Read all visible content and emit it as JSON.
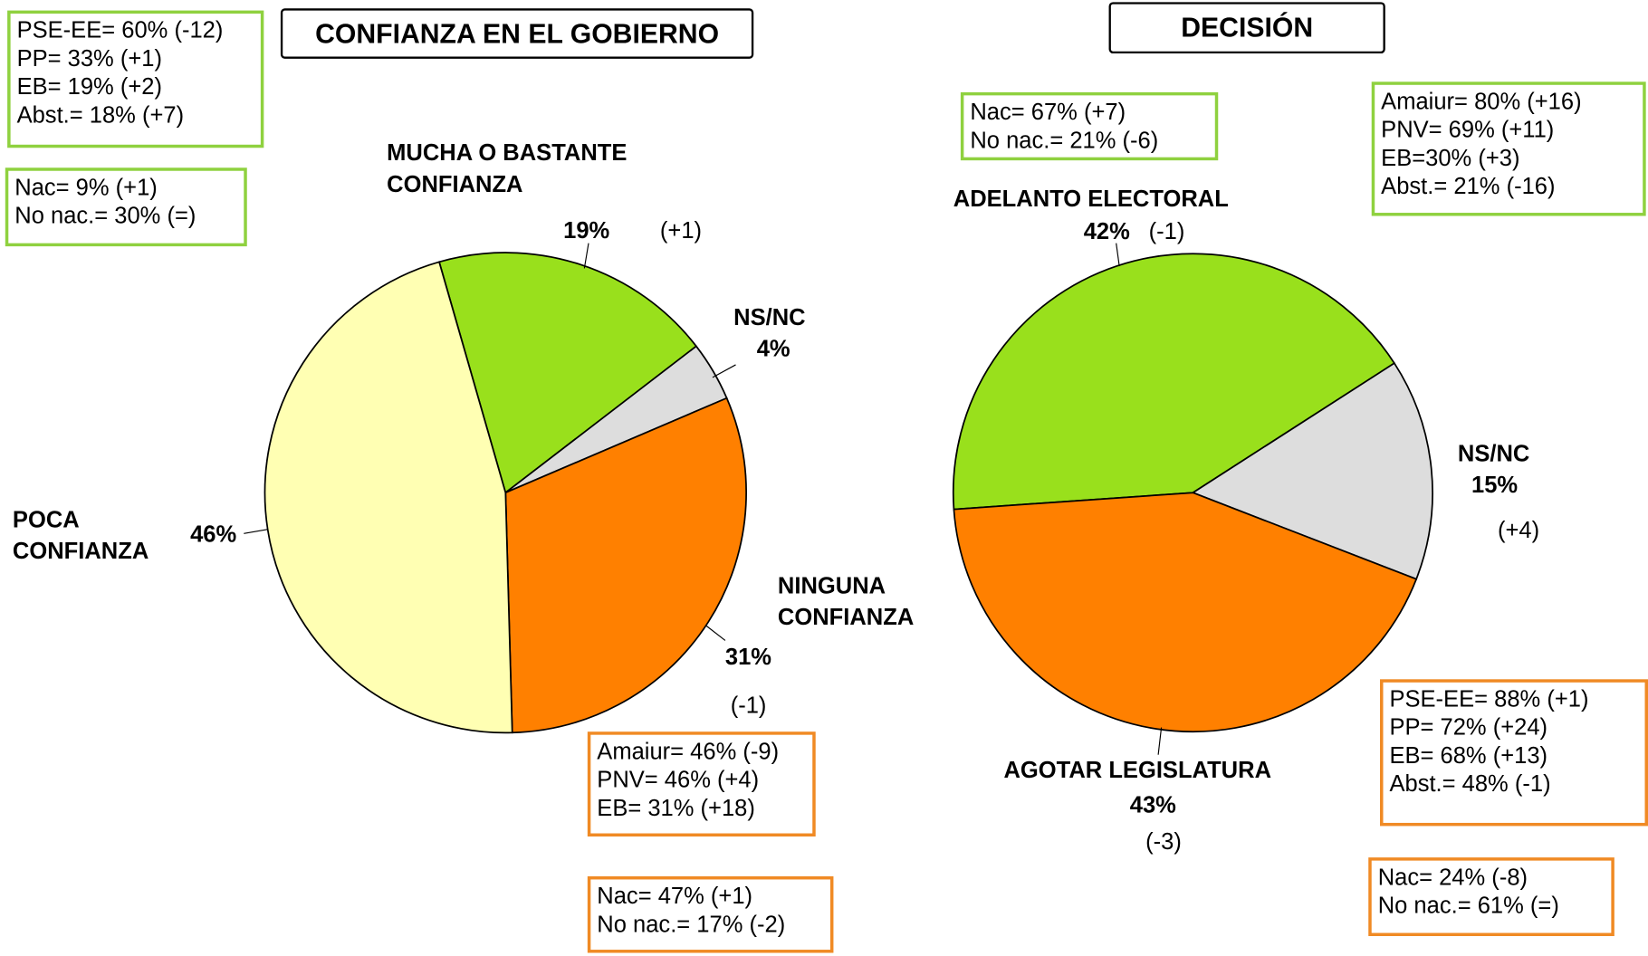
{
  "chart_data": [
    {
      "type": "pie",
      "title": "CONFIANZA EN EL GOBIERNO",
      "categories": [
        "MUCHA O BASTANTE CONFIANZA",
        "NS/NC",
        "NINGUNA CONFIANZA",
        "POCA CONFIANZA"
      ],
      "values": [
        19,
        4,
        31,
        46
      ],
      "value_labels": [
        "19%",
        "4%",
        "31%",
        "46%"
      ],
      "changes": [
        "(+1)",
        null,
        "(-1)",
        null
      ],
      "colors": [
        "#99e01c",
        "#dddddd",
        "#ff8000",
        "#ffffb3"
      ],
      "boxes": [
        {
          "color": "#8fd13f",
          "lines": [
            "PSE-EE= 60% (-12)",
            "PP= 33% (+1)",
            "EB= 19% (+2)",
            "Abst.= 18% (+7)"
          ]
        },
        {
          "color": "#8fd13f",
          "lines": [
            "Nac= 9% (+1)",
            "No nac.= 30% (=)"
          ]
        },
        {
          "color": "#f08a24",
          "lines": [
            "Amaiur= 46% (-9)",
            "PNV= 46% (+4)",
            "EB= 31% (+18)"
          ]
        },
        {
          "color": "#f08a24",
          "lines": [
            "Nac= 47%  (+1)",
            "No nac.= 17%  (-2)"
          ]
        }
      ]
    },
    {
      "type": "pie",
      "title": "DECISIÓN",
      "categories": [
        "ADELANTO ELECTORAL",
        "NS/NC",
        "AGOTAR LEGISLATURA"
      ],
      "values": [
        42,
        15,
        43
      ],
      "value_labels": [
        "42%",
        "15%",
        "43%"
      ],
      "changes": [
        "(-1)",
        "(+4)",
        "(-3)"
      ],
      "colors": [
        "#99e01c",
        "#dddddd",
        "#ff8000"
      ],
      "boxes": [
        {
          "color": "#8fd13f",
          "lines": [
            "Nac= 67% (+7)",
            "No nac.= 21% (-6)"
          ]
        },
        {
          "color": "#8fd13f",
          "lines": [
            "Amaiur= 80% (+16)",
            "PNV= 69% (+11)",
            "EB=30% (+3)",
            "Abst.= 21% (-16)"
          ]
        },
        {
          "color": "#f08a24",
          "lines": [
            "PSE-EE= 88% (+1)",
            "PP= 72% (+24)",
            "EB= 68% (+13)",
            "Abst.= 48% (-1)"
          ]
        },
        {
          "color": "#f08a24",
          "lines": [
            "Nac= 24% (-8)",
            "No nac.= 61% (=)"
          ]
        }
      ]
    }
  ]
}
